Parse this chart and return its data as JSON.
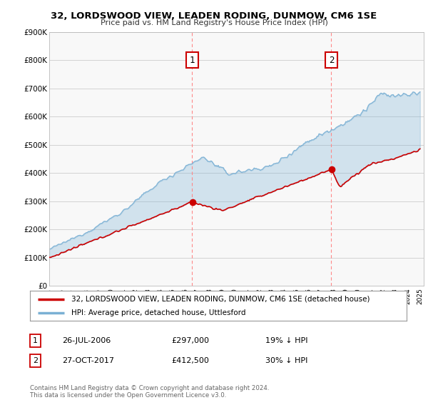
{
  "title": "32, LORDSWOOD VIEW, LEADEN RODING, DUNMOW, CM6 1SE",
  "subtitle": "Price paid vs. HM Land Registry's House Price Index (HPI)",
  "ylim": [
    0,
    900000
  ],
  "yticks": [
    0,
    100000,
    200000,
    300000,
    400000,
    500000,
    600000,
    700000,
    800000,
    900000
  ],
  "ytick_labels": [
    "£0",
    "£100K",
    "£200K",
    "£300K",
    "£400K",
    "£500K",
    "£600K",
    "£700K",
    "£800K",
    "£900K"
  ],
  "sale1_x": 2006.57,
  "sale1_price": 297000,
  "sale2_x": 2017.82,
  "sale2_price": 412500,
  "legend_red": "32, LORDSWOOD VIEW, LEADEN RODING, DUNMOW, CM6 1SE (detached house)",
  "legend_blue": "HPI: Average price, detached house, Uttlesford",
  "footnote": "Contains HM Land Registry data © Crown copyright and database right 2024.\nThis data is licensed under the Open Government Licence v3.0.",
  "red_color": "#cc0000",
  "blue_color": "#7ab0d4",
  "fill_color": "#ddeeff",
  "dashed_color": "#ff8888",
  "sale1_date": "26-JUL-2006",
  "sale2_date": "27-OCT-2017",
  "sale1_price_str": "£297,000",
  "sale2_price_str": "£412,500",
  "sale1_pct": "19% ↓ HPI",
  "sale2_pct": "30% ↓ HPI"
}
